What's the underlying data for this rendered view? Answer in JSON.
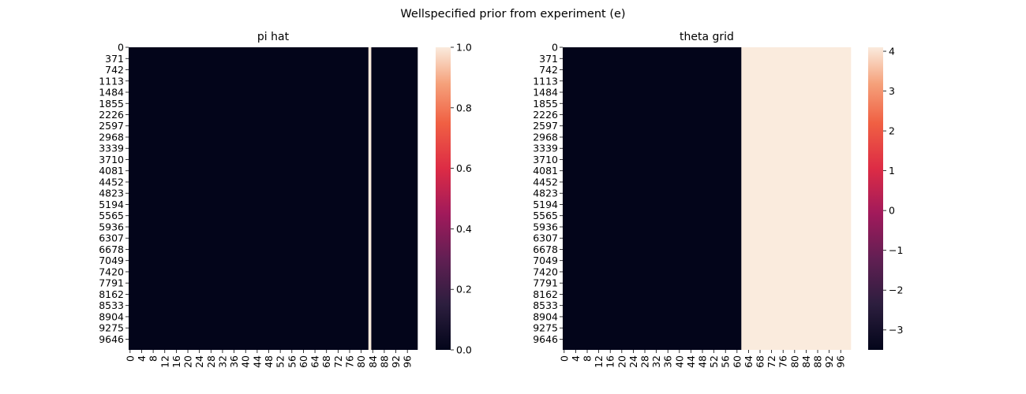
{
  "figure_title": "Wellspecified prior from experiment (e)",
  "chart_data": [
    {
      "type": "heatmap",
      "title": "pi hat",
      "n_cols": 100,
      "n_rows": 10000,
      "y_tick_labels": [
        "0",
        "371",
        "742",
        "1113",
        "1484",
        "1855",
        "2226",
        "2597",
        "2968",
        "3339",
        "3710",
        "4081",
        "4452",
        "4823",
        "5194",
        "5565",
        "5936",
        "6307",
        "6678",
        "7049",
        "7420",
        "7791",
        "8162",
        "8533",
        "8904",
        "9275",
        "9646"
      ],
      "x_tick_labels": [
        "0",
        "4",
        "8",
        "12",
        "16",
        "20",
        "24",
        "28",
        "32",
        "36",
        "40",
        "44",
        "48",
        "52",
        "56",
        "60",
        "64",
        "68",
        "72",
        "76",
        "80",
        "84",
        "88",
        "92",
        "96"
      ],
      "column_blocks": [
        {
          "from": 0,
          "to": 83,
          "value": 0
        },
        {
          "from": 83,
          "to": 84,
          "value": 1
        },
        {
          "from": 84,
          "to": 100,
          "value": 0
        }
      ],
      "colorbar": {
        "min": 0.0,
        "max": 1.0,
        "tick_labels": [
          "0.0",
          "0.2",
          "0.4",
          "0.6",
          "0.8",
          "1.0"
        ],
        "tick_values": [
          0.0,
          0.2,
          0.4,
          0.6,
          0.8,
          1.0
        ]
      }
    },
    {
      "type": "heatmap",
      "title": "theta grid",
      "n_cols": 100,
      "n_rows": 10000,
      "y_tick_labels": [
        "0",
        "371",
        "742",
        "1113",
        "1484",
        "1855",
        "2226",
        "2597",
        "2968",
        "3339",
        "3710",
        "4081",
        "4452",
        "4823",
        "5194",
        "5565",
        "5936",
        "6307",
        "6678",
        "7049",
        "7420",
        "7791",
        "8162",
        "8533",
        "8904",
        "9275",
        "9646"
      ],
      "x_tick_labels": [
        "0",
        "4",
        "8",
        "12",
        "16",
        "20",
        "24",
        "28",
        "32",
        "36",
        "40",
        "44",
        "48",
        "52",
        "56",
        "60",
        "64",
        "68",
        "72",
        "76",
        "80",
        "84",
        "88",
        "92",
        "96"
      ],
      "column_blocks": [
        {
          "from": 0,
          "to": 62,
          "value": -3.5
        },
        {
          "from": 62,
          "to": 100,
          "value": 4.1
        }
      ],
      "colorbar": {
        "min": -3.5,
        "max": 4.1,
        "tick_labels": [
          "−3",
          "−2",
          "−1",
          "0",
          "1",
          "2",
          "3",
          "4"
        ],
        "tick_values": [
          -3,
          -2,
          -1,
          0,
          1,
          2,
          3,
          4
        ]
      }
    }
  ]
}
